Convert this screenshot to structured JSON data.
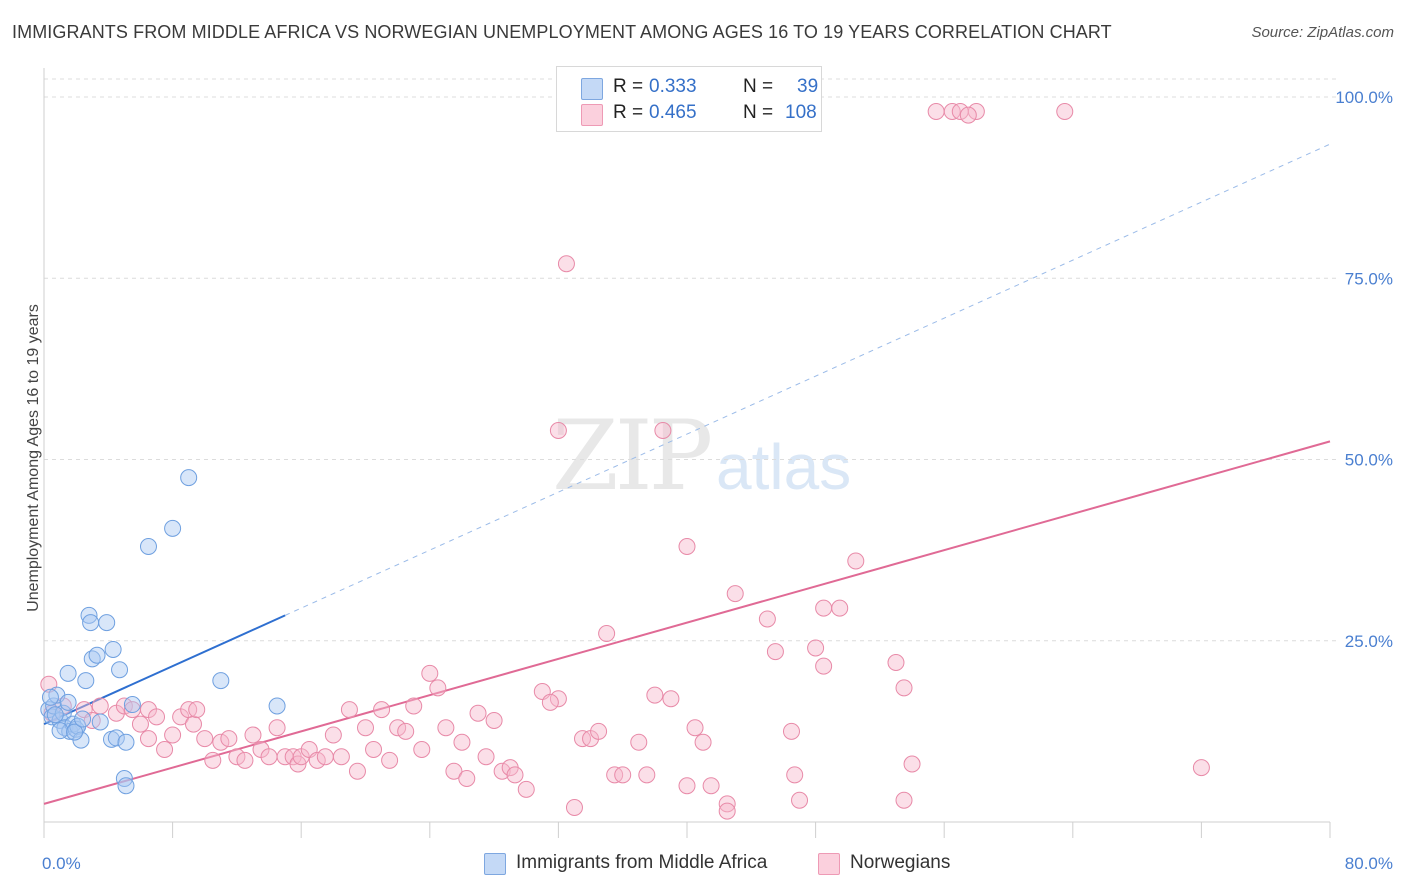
{
  "title": "IMMIGRANTS FROM MIDDLE AFRICA VS NORWEGIAN UNEMPLOYMENT AMONG AGES 16 TO 19 YEARS CORRELATION CHART",
  "source": "Source: ZipAtlas.com",
  "watermark": {
    "zip": "ZIP",
    "atlas": "atlas"
  },
  "legend": {
    "r_label": "R =",
    "n_label": "N =",
    "series": [
      {
        "r": "0.333",
        "n": "39",
        "color": "#a9c8f2"
      },
      {
        "r": "0.465",
        "n": "108",
        "color": "#f7b8cc"
      }
    ]
  },
  "bottom_legend": [
    {
      "label": "Immigrants from Middle Africa",
      "color": "#a9c8f2"
    },
    {
      "label": "Norwegians",
      "color": "#f7b8cc"
    }
  ],
  "chart_data": {
    "type": "scatter",
    "title": "IMMIGRANTS FROM MIDDLE AFRICA VS NORWEGIAN UNEMPLOYMENT AMONG AGES 16 TO 19 YEARS CORRELATION CHART",
    "xlabel": "",
    "ylabel": "Unemployment Among Ages 16 to 19 years",
    "xlim": [
      0,
      80
    ],
    "ylim": [
      0,
      100
    ],
    "x_tick_labels": [
      "0.0%",
      "80.0%"
    ],
    "y_tick_labels": [
      "25.0%",
      "50.0%",
      "75.0%",
      "100.0%"
    ],
    "y_ticks": [
      25,
      50,
      75,
      100
    ],
    "grid": true,
    "legend_position": "top-center",
    "series": [
      {
        "name": "Immigrants from Middle Africa",
        "color": "#6fa0e0",
        "fill": "#a9c8f2",
        "trend": {
          "x": [
            0,
            15
          ],
          "y": [
            13.5,
            28.5
          ],
          "extended_to": [
            80,
            93.5
          ]
        },
        "points": [
          [
            0.3,
            15.5
          ],
          [
            0.5,
            14.5
          ],
          [
            0.6,
            16
          ],
          [
            0.8,
            17.5
          ],
          [
            1.0,
            14
          ],
          [
            1.2,
            15
          ],
          [
            1.3,
            13
          ],
          [
            1.5,
            16.5
          ],
          [
            1.6,
            12.5
          ],
          [
            1.8,
            13.5
          ],
          [
            2.0,
            12.8
          ],
          [
            2.1,
            13.2
          ],
          [
            2.3,
            11.3
          ],
          [
            1.5,
            20.5
          ],
          [
            2.6,
            19.5
          ],
          [
            3.0,
            22.5
          ],
          [
            3.3,
            23
          ],
          [
            2.8,
            28.5
          ],
          [
            2.9,
            27.5
          ],
          [
            3.9,
            27.5
          ],
          [
            4.3,
            23.8
          ],
          [
            4.7,
            21
          ],
          [
            4.2,
            11.4
          ],
          [
            4.5,
            11.6
          ],
          [
            5.1,
            11
          ],
          [
            5.0,
            6
          ],
          [
            5.1,
            5
          ],
          [
            5.5,
            16.2
          ],
          [
            6.5,
            38
          ],
          [
            8.0,
            40.5
          ],
          [
            9.0,
            47.5
          ],
          [
            11.0,
            19.5
          ],
          [
            14.5,
            16
          ],
          [
            1.0,
            12.6
          ],
          [
            0.7,
            14.8
          ],
          [
            1.9,
            12.4
          ],
          [
            3.5,
            13.8
          ],
          [
            0.4,
            17.2
          ],
          [
            2.4,
            14.2
          ]
        ]
      },
      {
        "name": "Norwegians",
        "color": "#e88aa8",
        "fill": "#f7b8cc",
        "trend": {
          "x": [
            0,
            80
          ],
          "y": [
            2.5,
            52.5
          ]
        },
        "points": [
          [
            0.3,
            19
          ],
          [
            0.5,
            15
          ],
          [
            1.2,
            16
          ],
          [
            2.5,
            15.5
          ],
          [
            3.0,
            14
          ],
          [
            3.5,
            16
          ],
          [
            4.5,
            15
          ],
          [
            5.0,
            16
          ],
          [
            5.5,
            15.5
          ],
          [
            6.0,
            13.5
          ],
          [
            6.5,
            15.5
          ],
          [
            6.5,
            11.5
          ],
          [
            7.0,
            14.5
          ],
          [
            7.5,
            10
          ],
          [
            8.0,
            12
          ],
          [
            8.5,
            14.5
          ],
          [
            9.0,
            15.5
          ],
          [
            9.3,
            13.5
          ],
          [
            9.5,
            15.5
          ],
          [
            10.0,
            11.5
          ],
          [
            10.5,
            8.5
          ],
          [
            11.0,
            11
          ],
          [
            11.5,
            11.5
          ],
          [
            12.0,
            9
          ],
          [
            12.5,
            8.5
          ],
          [
            13.0,
            12
          ],
          [
            13.5,
            10
          ],
          [
            14.0,
            9
          ],
          [
            14.5,
            13
          ],
          [
            15.0,
            9
          ],
          [
            15.5,
            9
          ],
          [
            15.8,
            8
          ],
          [
            16.0,
            9
          ],
          [
            16.5,
            10
          ],
          [
            17.0,
            8.5
          ],
          [
            17.5,
            9
          ],
          [
            18.0,
            12
          ],
          [
            18.5,
            9
          ],
          [
            19.0,
            15.5
          ],
          [
            19.5,
            7
          ],
          [
            20.0,
            13
          ],
          [
            20.5,
            10
          ],
          [
            21.0,
            15.5
          ],
          [
            21.5,
            8.5
          ],
          [
            22.0,
            13
          ],
          [
            22.5,
            12.5
          ],
          [
            23.0,
            16
          ],
          [
            23.5,
            10
          ],
          [
            24.0,
            20.5
          ],
          [
            24.5,
            18.5
          ],
          [
            25.0,
            13
          ],
          [
            25.5,
            7
          ],
          [
            26.0,
            11
          ],
          [
            26.3,
            6
          ],
          [
            27.0,
            15
          ],
          [
            27.5,
            9
          ],
          [
            28.0,
            14
          ],
          [
            28.5,
            7
          ],
          [
            29.0,
            7.5
          ],
          [
            29.3,
            6.5
          ],
          [
            30.0,
            4.5
          ],
          [
            31.0,
            18
          ],
          [
            32.0,
            17
          ],
          [
            31.5,
            16.5
          ],
          [
            33.0,
            2
          ],
          [
            33.5,
            11.5
          ],
          [
            34.0,
            11.5
          ],
          [
            34.5,
            12.5
          ],
          [
            35.0,
            26
          ],
          [
            35.5,
            6.5
          ],
          [
            36.0,
            6.5
          ],
          [
            37.0,
            11
          ],
          [
            37.5,
            6.5
          ],
          [
            38.0,
            17.5
          ],
          [
            39.0,
            17
          ],
          [
            40.0,
            5
          ],
          [
            40.5,
            13
          ],
          [
            41.0,
            11
          ],
          [
            41.5,
            5
          ],
          [
            42.5,
            2.5
          ],
          [
            43.0,
            31.5
          ],
          [
            45.0,
            28
          ],
          [
            45.5,
            23.5
          ],
          [
            46.5,
            12.5
          ],
          [
            46.7,
            6.5
          ],
          [
            47.0,
            3
          ],
          [
            48.5,
            29.5
          ],
          [
            49.5,
            29.5
          ],
          [
            48.0,
            24
          ],
          [
            48.5,
            21.5
          ],
          [
            50.5,
            36
          ],
          [
            53.0,
            22
          ],
          [
            53.5,
            18.5
          ],
          [
            54.0,
            8
          ],
          [
            53.5,
            3
          ],
          [
            42.5,
            1.5
          ],
          [
            72.0,
            7.5
          ],
          [
            32.5,
            77
          ],
          [
            32.0,
            54
          ],
          [
            38.5,
            54
          ],
          [
            40.0,
            38
          ],
          [
            55.5,
            98
          ],
          [
            56.5,
            98
          ],
          [
            57.0,
            98
          ],
          [
            58.0,
            98
          ],
          [
            63.5,
            98
          ],
          [
            57.5,
            97.5
          ]
        ]
      }
    ]
  }
}
